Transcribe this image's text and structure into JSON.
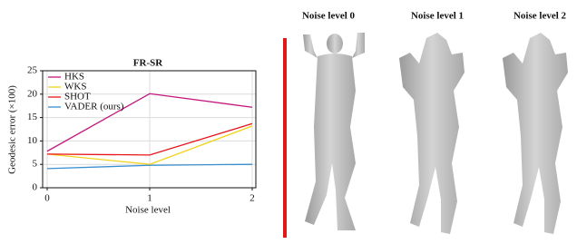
{
  "chart_data": {
    "type": "line",
    "title": "FR-SR",
    "x_label": "Noise level",
    "y_label": "Geodesic error (×100)",
    "x": [
      0,
      1,
      2
    ],
    "xlim": [
      0,
      2
    ],
    "xticks": [
      0,
      1,
      2
    ],
    "ylim": [
      0,
      25
    ],
    "yticks": [
      0,
      5,
      10,
      15,
      20,
      25
    ],
    "grid": true,
    "legend": "upper left",
    "series": [
      {
        "name": "HKS",
        "color": "#c2187e",
        "values": [
          7.8,
          20.1,
          17.2
        ]
      },
      {
        "name": "WKS",
        "color": "#f2d21e",
        "values": [
          7.2,
          5.0,
          13.2
        ]
      },
      {
        "name": "SHOT",
        "color": "#e8151b",
        "values": [
          7.2,
          7.0,
          13.7
        ]
      },
      {
        "name": "VADER (ours)",
        "color": "#3a8fd0",
        "values": [
          4.1,
          4.8,
          5.0
        ]
      }
    ]
  },
  "panels": [
    {
      "label": "Noise level 0"
    },
    {
      "label": "Noise level 1"
    },
    {
      "label": "Noise level 2"
    }
  ]
}
